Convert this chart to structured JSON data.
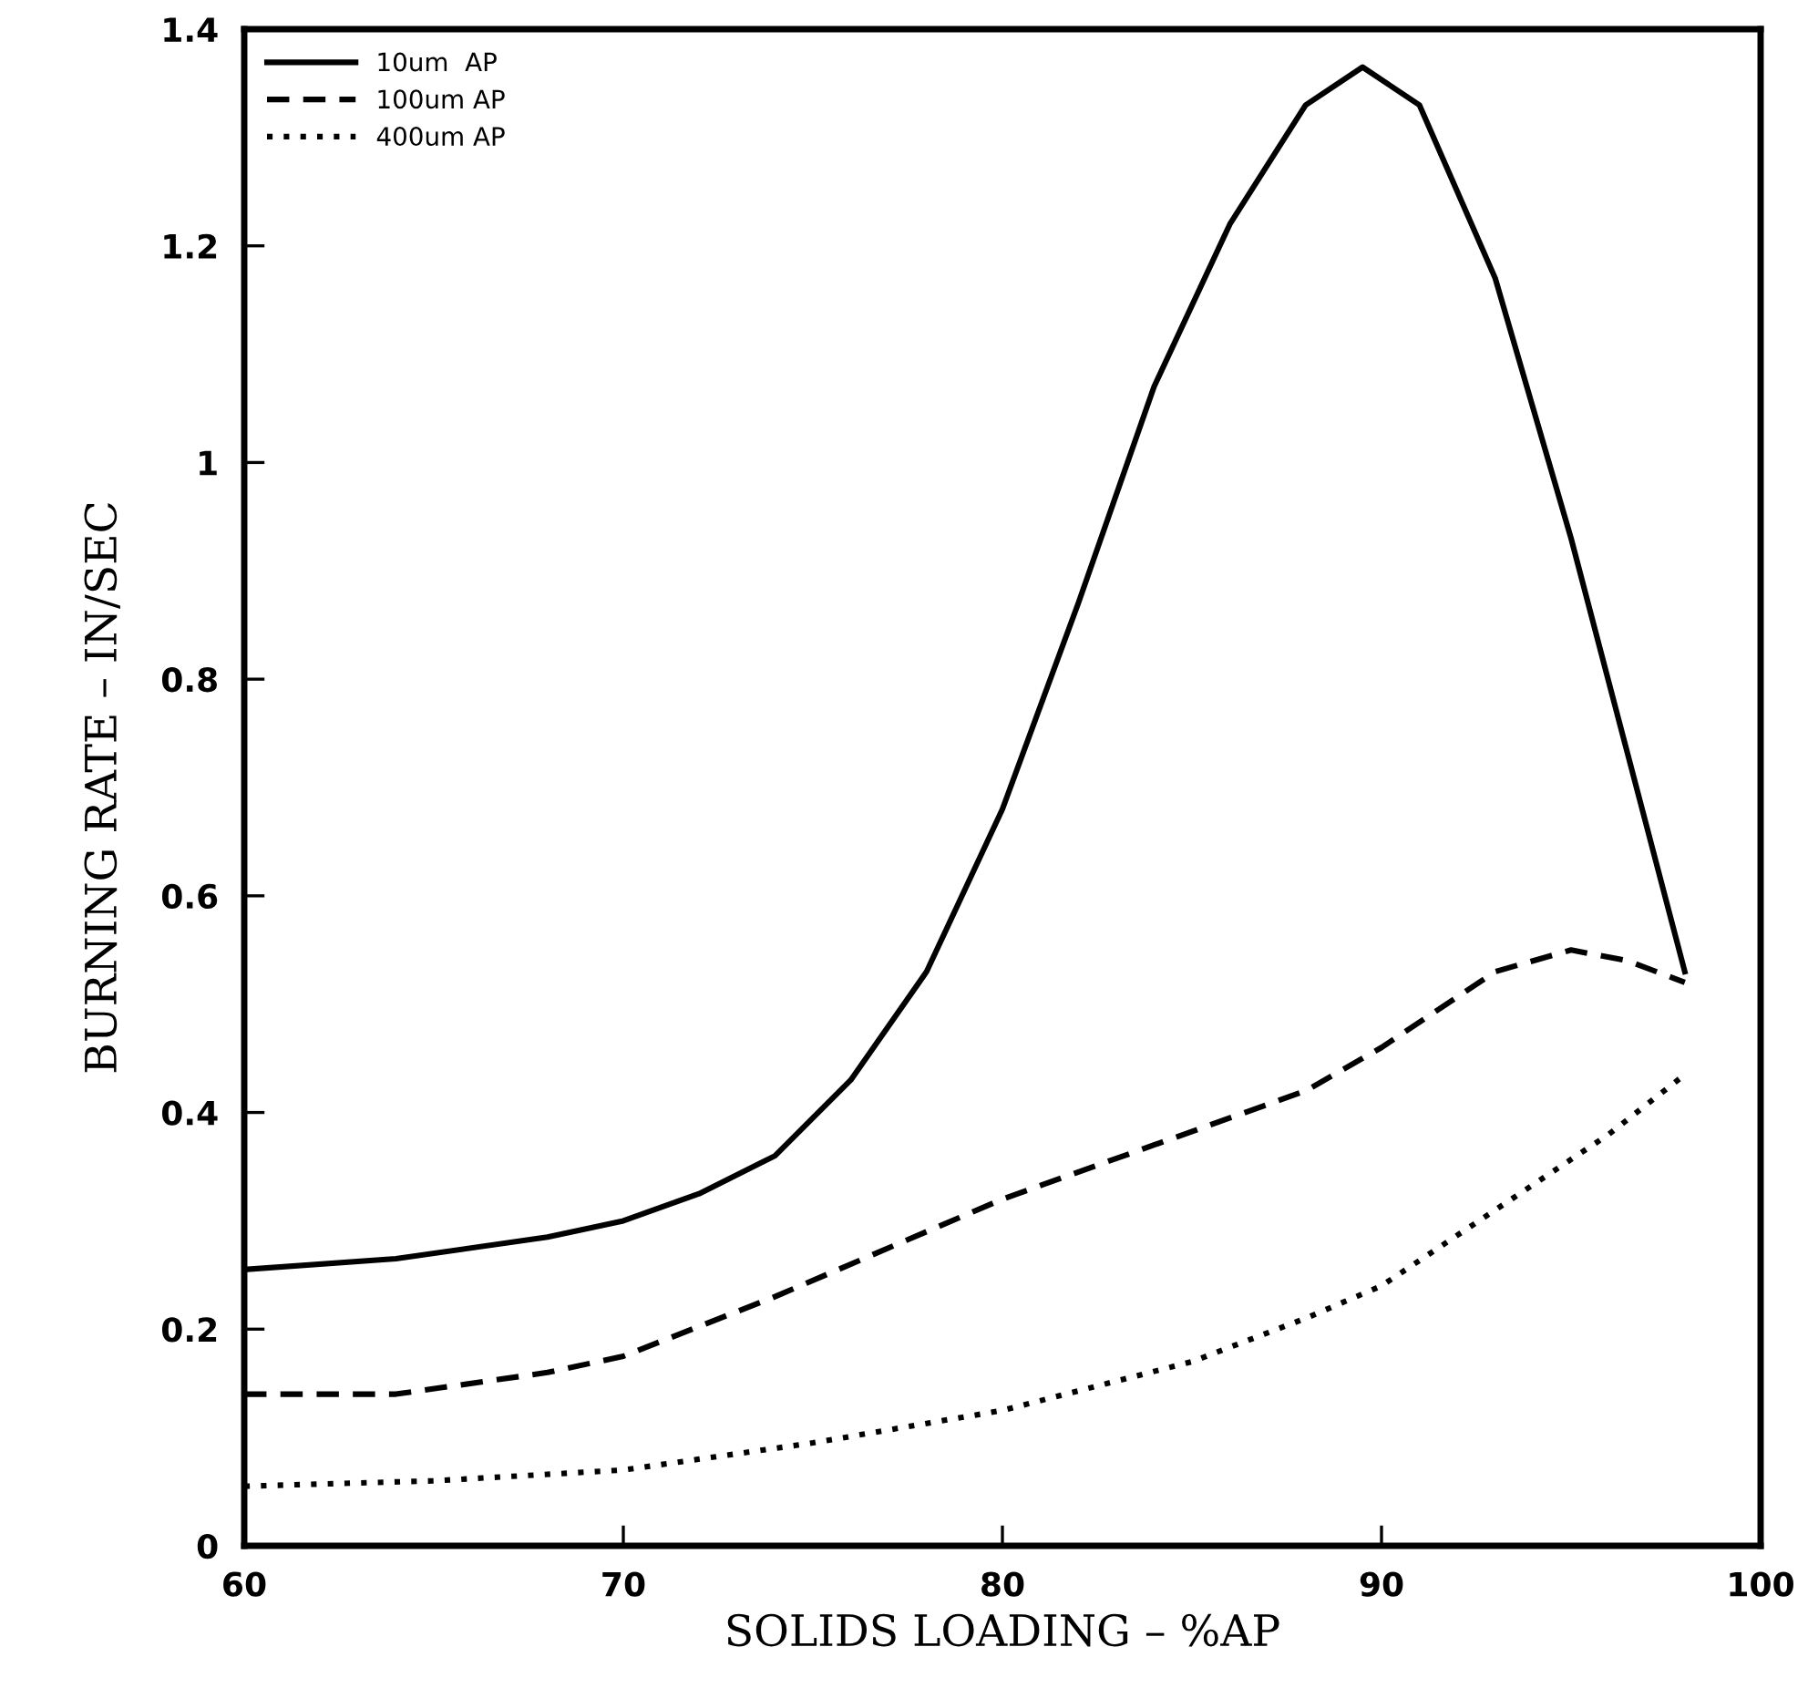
{
  "chart_data": {
    "type": "line",
    "xlabel": "SOLIDS LOADING – %AP",
    "ylabel": "BURNING RATE – IN/SEC",
    "xlim": [
      60,
      100
    ],
    "xticks": [
      60,
      70,
      80,
      90,
      100
    ],
    "ylim": [
      0,
      1.4
    ],
    "yticks": [
      0,
      0.2,
      0.4,
      0.6,
      0.8,
      1,
      1.2,
      1.4
    ],
    "grid": false,
    "legend": "top left",
    "series": [
      {
        "name": "10um  AP",
        "color": "#000000",
        "line_style": "solid",
        "x": [
          60,
          64,
          68,
          70,
          72,
          74,
          76,
          78,
          80,
          82,
          84,
          86,
          88,
          89.5,
          91,
          93,
          95,
          96.5,
          98
        ],
        "values": [
          0.255,
          0.265,
          0.285,
          0.3,
          0.325,
          0.36,
          0.43,
          0.53,
          0.68,
          0.87,
          1.07,
          1.22,
          1.33,
          1.365,
          1.33,
          1.17,
          0.93,
          0.73,
          0.53
        ]
      },
      {
        "name": "100um AP",
        "color": "#000000",
        "line_style": "dashed",
        "x": [
          60,
          64,
          68,
          70,
          74,
          78,
          80,
          84,
          88,
          90,
          93,
          95,
          96.5,
          98
        ],
        "values": [
          0.14,
          0.14,
          0.16,
          0.175,
          0.23,
          0.29,
          0.32,
          0.37,
          0.42,
          0.46,
          0.53,
          0.55,
          0.54,
          0.52
        ]
      },
      {
        "name": "400um AP",
        "color": "#000000",
        "line_style": "dotted",
        "x": [
          60,
          65,
          70,
          75,
          80,
          85,
          88,
          90,
          93,
          96,
          98
        ],
        "values": [
          0.055,
          0.06,
          0.07,
          0.095,
          0.125,
          0.17,
          0.21,
          0.24,
          0.31,
          0.38,
          0.435
        ]
      }
    ]
  }
}
